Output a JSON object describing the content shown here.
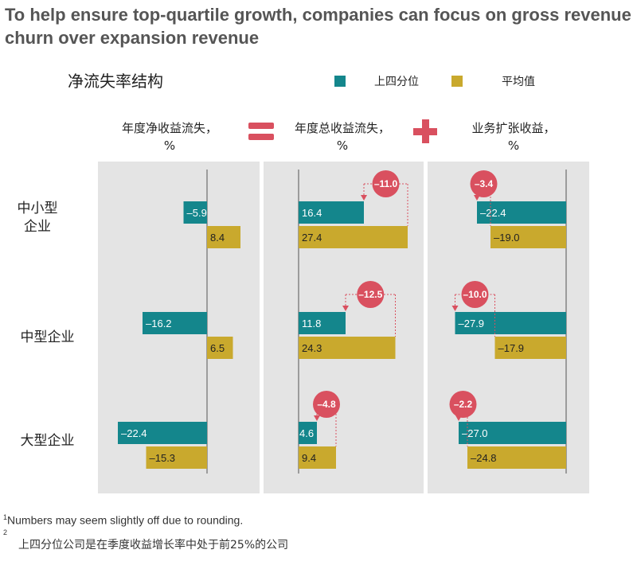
{
  "title": "To help ensure top-quartile growth, companies can focus on gross revenue churn over expansion revenue",
  "subtitle": "净流失率结构",
  "legend": [
    {
      "label": "上四分位",
      "color": "#14868c"
    },
    {
      "label": "平均值",
      "color": "#c9a92d"
    }
  ],
  "columns": [
    {
      "title": "年度净收益流失，",
      "unit": "%"
    },
    {
      "title": "年度总收益流失，",
      "unit": "%"
    },
    {
      "title": "业务扩张收益，",
      "unit": "%"
    }
  ],
  "operators": {
    "equals": "equals-sign",
    "plus": "plus-sign"
  },
  "rows": [
    "中小型企业",
    "中型企业",
    "大型企业"
  ],
  "chart_data": {
    "type": "bar",
    "orientation": "horizontal",
    "categories": [
      "中小型企业",
      "中型企业",
      "大型企业"
    ],
    "panels": [
      {
        "name": "年度净收益流失，%",
        "series": [
          {
            "name": "上四分位",
            "values": [
              -5.9,
              -16.2,
              -22.4
            ],
            "labels": [
              "–5.9",
              "–16.2",
              "–22.4"
            ]
          },
          {
            "name": "平均值",
            "values": [
              8.4,
              6.5,
              -15.3
            ],
            "labels": [
              "8.4",
              "6.5",
              "–15.3"
            ]
          }
        ]
      },
      {
        "name": "年度总收益流失，%",
        "series": [
          {
            "name": "上四分位",
            "values": [
              16.4,
              11.8,
              4.6
            ],
            "labels": [
              "16.4",
              "11.8",
              "4.6"
            ]
          },
          {
            "name": "平均值",
            "values": [
              27.4,
              24.3,
              9.4
            ],
            "labels": [
              "27.4",
              "24.3",
              "9.4"
            ]
          }
        ],
        "differences": [
          -11.0,
          -12.5,
          -4.8
        ],
        "difference_labels": [
          "–11.0",
          "–12.5",
          "–4.8"
        ]
      },
      {
        "name": "业务扩张收益，%",
        "series": [
          {
            "name": "上四分位",
            "values": [
              -22.4,
              -27.9,
              -27.0
            ],
            "labels": [
              "–22.4",
              "–27.9",
              "–27.0"
            ]
          },
          {
            "name": "平均值",
            "values": [
              -19.0,
              -17.9,
              -24.8
            ],
            "labels": [
              "–19.0",
              "–17.9",
              "–24.8"
            ]
          }
        ],
        "differences": [
          -3.4,
          -10.0,
          -2.2
        ],
        "difference_labels": [
          "–3.4",
          "–10.0",
          "–2.2"
        ]
      }
    ],
    "colors": {
      "top_quartile": "#14868c",
      "average": "#c9a92d",
      "difference": "#d9505f",
      "panel_bg": "#e4e4e4"
    }
  },
  "footnotes": {
    "note1_marker": "1",
    "note1": "Numbers may seem slightly off due to rounding.",
    "note2_marker": "2",
    "note2": "上四分位公司是在季度收益增长率中处于前25%的公司"
  }
}
